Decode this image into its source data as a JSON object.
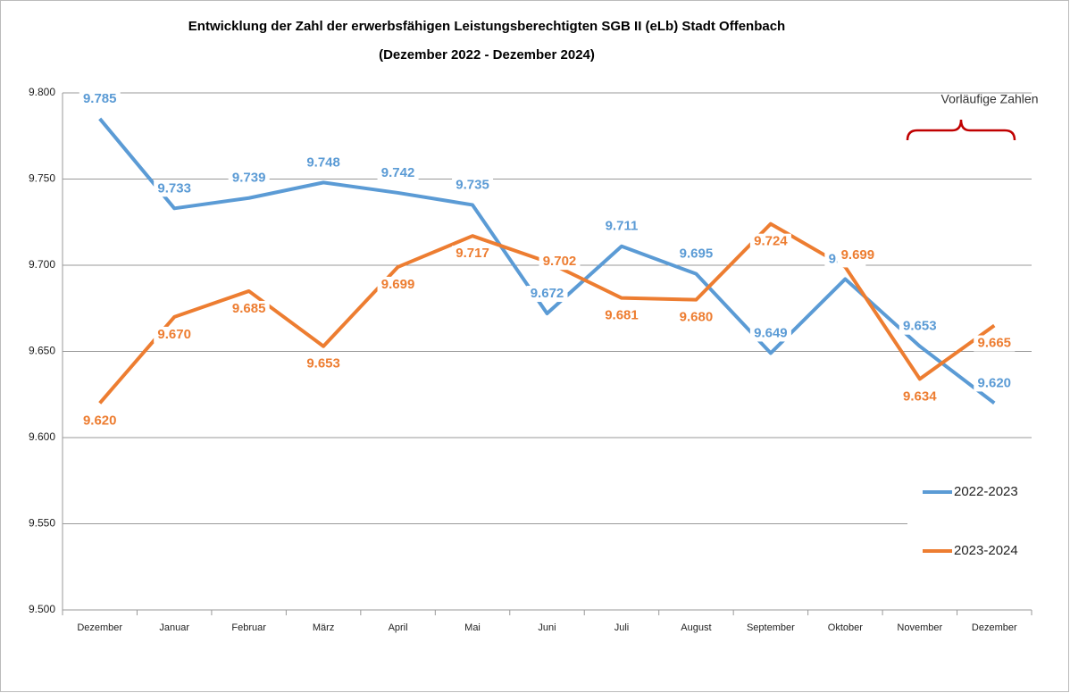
{
  "chart_data": {
    "type": "line",
    "title": "Entwicklung der Zahl der erwerbsfähigen Leistungsberechtigten SGB II (eLb) Stadt Offenbach",
    "subtitle": "(Dezember 2022 - Dezember 2024)",
    "annotation": "Vorläufige Zahlen",
    "categories": [
      "Dezember",
      "Januar",
      "Februar",
      "März",
      "April",
      "Mai",
      "Juni",
      "Juli",
      "August",
      "September",
      "Oktober",
      "November",
      "Dezember"
    ],
    "series": [
      {
        "name": "2022-2023",
        "color": "#5b9bd5",
        "values": [
          9785,
          9733,
          9739,
          9748,
          9742,
          9735,
          9672,
          9711,
          9695,
          9649,
          9692,
          9653,
          9620
        ],
        "value_labels": [
          "9.785",
          "9.733",
          "9.739",
          "9.748",
          "9.742",
          "9.735",
          "9.672",
          "9.711",
          "9.695",
          "9.649",
          "9.692",
          "9.653",
          "9.620"
        ]
      },
      {
        "name": "2023-2024",
        "color": "#ed7d31",
        "values": [
          9620,
          9670,
          9685,
          9653,
          9699,
          9717,
          9702,
          9681,
          9680,
          9724,
          9699,
          9634,
          9665
        ],
        "value_labels": [
          "9.620",
          "9.670",
          "9.685",
          "9.653",
          "9.699",
          "9.717",
          "9.702",
          "9.681",
          "9.680",
          "9.724",
          "9.699",
          "9.634",
          "9.665"
        ]
      }
    ],
    "ylim": [
      9500,
      9800
    ],
    "yticks": [
      {
        "value": 9500,
        "label": "9.500"
      },
      {
        "value": 9550,
        "label": "9.550"
      },
      {
        "value": 9600,
        "label": "9.600"
      },
      {
        "value": 9650,
        "label": "9.650"
      },
      {
        "value": 9700,
        "label": "9.700"
      },
      {
        "value": 9750,
        "label": "9.750"
      },
      {
        "value": 9800,
        "label": "9.800"
      }
    ],
    "grid": true
  }
}
